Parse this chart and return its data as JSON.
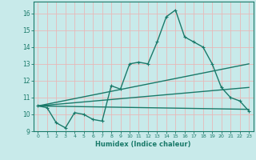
{
  "xlabel": "Humidex (Indice chaleur)",
  "bg_color": "#c8eaea",
  "grid_color": "#e8b8b8",
  "line_color": "#1a7a6a",
  "xlim": [
    -0.5,
    23.5
  ],
  "ylim": [
    9,
    16.7
  ],
  "yticks": [
    9,
    10,
    11,
    12,
    13,
    14,
    15,
    16
  ],
  "xticks": [
    0,
    1,
    2,
    3,
    4,
    5,
    6,
    7,
    8,
    9,
    10,
    11,
    12,
    13,
    14,
    15,
    16,
    17,
    18,
    19,
    20,
    21,
    22,
    23
  ],
  "series1_x": [
    0,
    1,
    2,
    3,
    4,
    5,
    6,
    7,
    8,
    9,
    10,
    11,
    12,
    13,
    14,
    15,
    16,
    17,
    18,
    19,
    20,
    21,
    22,
    23
  ],
  "series1_y": [
    10.5,
    10.4,
    9.5,
    9.2,
    10.1,
    10.0,
    9.7,
    9.6,
    11.7,
    11.5,
    13.0,
    13.1,
    13.0,
    14.3,
    15.8,
    16.2,
    14.6,
    14.3,
    14.0,
    13.0,
    11.6,
    11.0,
    10.8,
    10.2
  ],
  "series2_x": [
    0,
    23
  ],
  "series2_y": [
    10.5,
    13.0
  ],
  "series3_x": [
    0,
    23
  ],
  "series3_y": [
    10.5,
    11.6
  ],
  "series4_x": [
    0,
    23
  ],
  "series4_y": [
    10.5,
    10.3
  ],
  "marker_size": 3,
  "line_width": 1.0
}
